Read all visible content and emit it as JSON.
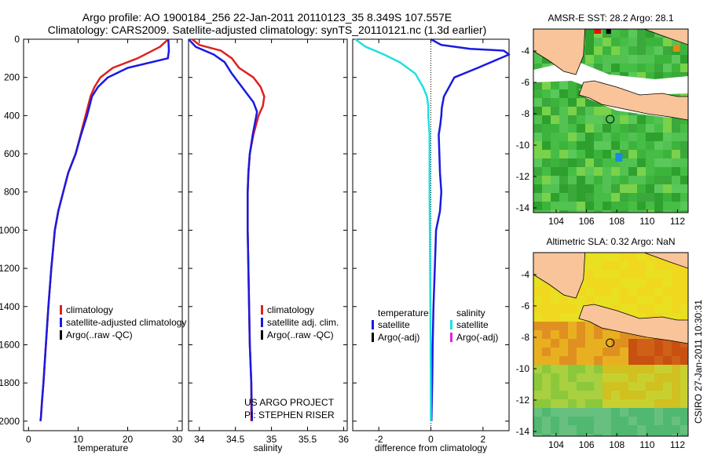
{
  "header": {
    "title_line1": "Argo profile: AO 1900184_256 22-Jan-2011 20110123_35 8.349S 107.557E",
    "title_line2": "Climatology: CARS2009. Satellite-adjusted climatology: synTS_20110121.nc (1.3d earlier)"
  },
  "side_label": "CSIRO 27-Jan-2011 10:30:31",
  "colors": {
    "climatology": "#e02020",
    "satellite": "#1a1ae0",
    "argo": "#000000",
    "satellite_salinity": "#20e0e0",
    "argo_adj_salinity": "#e020e0",
    "land": "#f9c49a"
  },
  "chart_data": [
    {
      "type": "line",
      "id": "temperature",
      "xlabel": "temperature",
      "xlim": [
        -1,
        31
      ],
      "ylim": [
        2050,
        0
      ],
      "xticks": [
        0,
        10,
        20,
        30
      ],
      "yticks": [
        0,
        200,
        400,
        600,
        800,
        1000,
        1200,
        1400,
        1600,
        1800,
        2000
      ],
      "series": [
        {
          "name": "climatology",
          "color": "#e02020",
          "x": [
            28.2,
            26.5,
            22.0,
            17.0,
            14.5,
            13.3,
            12.5,
            11.5,
            10.5,
            9.5,
            8.0,
            7.0,
            6.0,
            5.3,
            4.6,
            4.0,
            3.5,
            3.0,
            2.7,
            2.5,
            2.4
          ],
          "y": [
            0,
            40,
            100,
            150,
            200,
            250,
            300,
            400,
            500,
            600,
            700,
            800,
            900,
            1000,
            1200,
            1400,
            1600,
            1800,
            1900,
            1980,
            2000
          ]
        },
        {
          "name": "satellite-adjusted climatology",
          "color": "#1a1ae0",
          "x": [
            28.2,
            28.3,
            28.1,
            20.0,
            16.0,
            14.0,
            12.8,
            11.8,
            10.6,
            9.5,
            8.0,
            7.0,
            6.0,
            5.3,
            4.6,
            4.0,
            3.5,
            3.0,
            2.7,
            2.5,
            2.4
          ],
          "y": [
            0,
            60,
            100,
            150,
            200,
            250,
            300,
            400,
            500,
            600,
            700,
            800,
            900,
            1000,
            1200,
            1400,
            1600,
            1800,
            1900,
            1980,
            2000
          ]
        }
      ],
      "legend": {
        "placement": "lower-right",
        "entries": [
          "climatology",
          "satellite-adjusted climatology",
          "Argo(..raw -QC)"
        ]
      }
    },
    {
      "type": "line",
      "id": "salinity",
      "xlabel": "salinity",
      "xlim": [
        33.85,
        36.05
      ],
      "ylim": [
        2050,
        0
      ],
      "xticks": [
        34,
        34.5,
        35,
        35.5,
        36
      ],
      "series": [
        {
          "name": "climatology",
          "color": "#e02020",
          "x": [
            33.9,
            34.0,
            34.3,
            34.45,
            34.55,
            34.75,
            34.85,
            34.9,
            34.88,
            34.82,
            34.75,
            34.7,
            34.68,
            34.67,
            34.67,
            34.68,
            34.69,
            34.7,
            34.72,
            34.72
          ],
          "y": [
            0,
            30,
            60,
            100,
            150,
            200,
            250,
            300,
            350,
            400,
            500,
            600,
            700,
            800,
            1000,
            1200,
            1400,
            1600,
            1800,
            2000
          ]
        },
        {
          "name": "satellite adj. clim.",
          "color": "#1a1ae0",
          "x": [
            33.85,
            33.95,
            34.2,
            34.35,
            34.45,
            34.55,
            34.65,
            34.75,
            34.8,
            34.78,
            34.74,
            34.7,
            34.68,
            34.67,
            34.67,
            34.68,
            34.69,
            34.7,
            34.72,
            34.73
          ],
          "y": [
            0,
            40,
            80,
            120,
            180,
            230,
            280,
            330,
            380,
            420,
            500,
            600,
            700,
            800,
            1000,
            1200,
            1400,
            1600,
            1800,
            2000
          ]
        }
      ],
      "legend": {
        "placement": "lower-right",
        "entries": [
          "climatology",
          "satellite adj. clim.",
          "Argo(..raw -QC)"
        ]
      },
      "annotation": [
        "US ARGO PROJECT",
        "PI: STEPHEN RISER"
      ]
    },
    {
      "type": "line",
      "id": "difference",
      "xlabel": "difference from climatology",
      "xlim": [
        -3.0,
        3.0
      ],
      "ylim": [
        2050,
        0
      ],
      "xticks": [
        -2,
        0,
        2
      ],
      "series": [
        {
          "name": "temperature satellite",
          "color": "#1a1ae0",
          "x": [
            0.0,
            0.4,
            1.5,
            2.8,
            3.0,
            1.8,
            0.9,
            0.5,
            0.42,
            0.4,
            0.36,
            0.3,
            0.35,
            0.4,
            0.35,
            0.2,
            0.15,
            0.1,
            0.07,
            0.05,
            0.02
          ],
          "y": [
            0,
            30,
            50,
            60,
            80,
            150,
            200,
            300,
            360,
            400,
            450,
            500,
            700,
            800,
            900,
            1000,
            1200,
            1400,
            1600,
            1800,
            2000
          ]
        },
        {
          "name": "salinity satellite",
          "color": "#20e0e0",
          "x": [
            -2.9,
            -2.5,
            -1.8,
            -1.2,
            -0.6,
            -0.3,
            -0.15,
            -0.1,
            -0.1,
            -0.05,
            -0.05,
            -0.05,
            -0.04,
            -0.03,
            -0.02,
            -0.01,
            0.0
          ],
          "y": [
            0,
            40,
            80,
            120,
            180,
            250,
            300,
            350,
            400,
            500,
            600,
            800,
            1000,
            1200,
            1400,
            1600,
            2000
          ]
        }
      ],
      "legend": {
        "placement": "lower-center",
        "col1_title": "temperature",
        "col1": [
          "satellite",
          "Argo(-adj)"
        ],
        "col2_title": "salinity",
        "col2": [
          "satellite",
          "Argo(-adj)"
        ]
      }
    },
    {
      "type": "heatmap",
      "id": "sst_map",
      "title": "AMSR-E SST: 28.2 Argo: 28.1",
      "xlim": [
        102.5,
        112.7
      ],
      "ylim": [
        -14.3,
        -2.6
      ],
      "xticks": [
        104,
        106,
        108,
        110,
        112
      ],
      "yticks": [
        -4,
        -6,
        -8,
        -10,
        -12,
        -14
      ],
      "float_position": {
        "lon": 107.557,
        "lat": -8.349
      }
    },
    {
      "type": "heatmap",
      "id": "sla_map",
      "title": "Altimetric SLA: 0.32 Argo: NaN",
      "xlim": [
        102.5,
        112.7
      ],
      "ylim": [
        -14.3,
        -2.6
      ],
      "xticks": [
        104,
        106,
        108,
        110,
        112
      ],
      "yticks": [
        -4,
        -6,
        -8,
        -10,
        -12,
        -14
      ],
      "float_position": {
        "lon": 107.557,
        "lat": -8.349
      }
    }
  ]
}
